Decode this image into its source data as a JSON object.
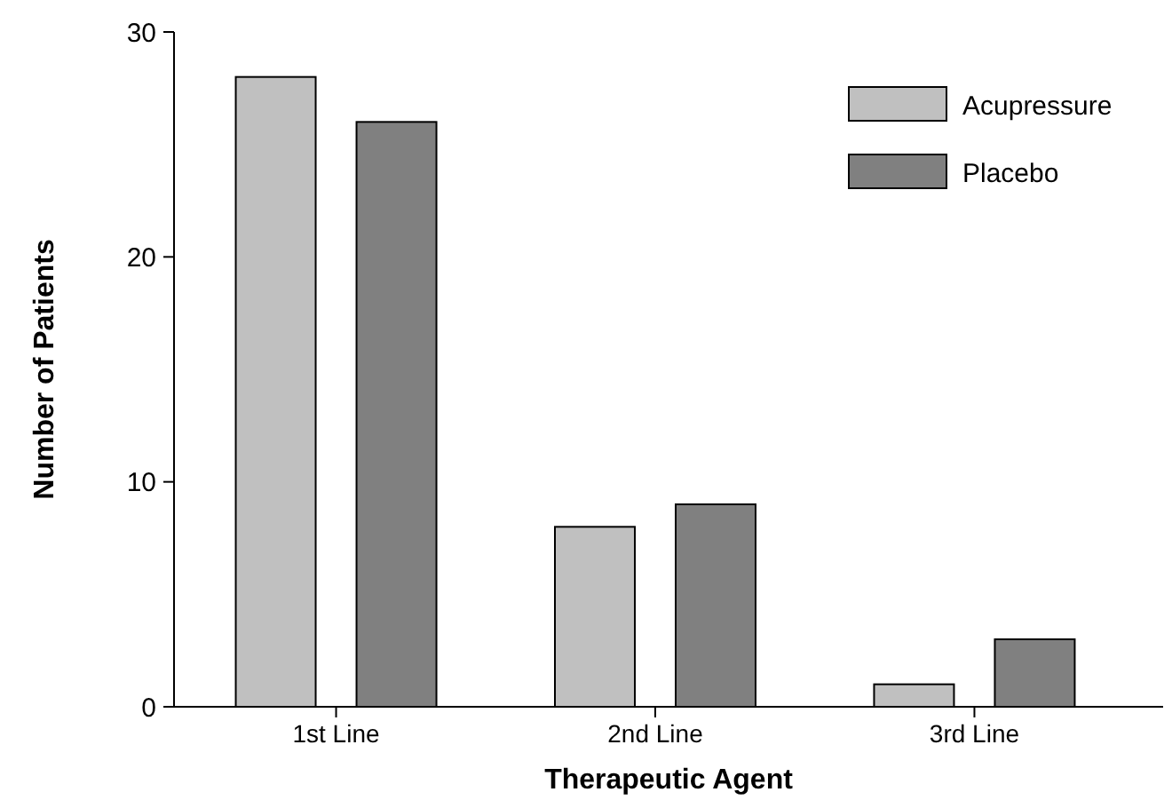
{
  "chart_data": {
    "type": "bar",
    "xlabel": "Therapeutic Agent",
    "ylabel": "Number of Patients",
    "categories": [
      "1st Line",
      "2nd Line",
      "3rd Line"
    ],
    "series": [
      {
        "name": "Acupressure",
        "color": "#c0c0c0",
        "values": [
          28,
          8,
          1
        ]
      },
      {
        "name": "Placebo",
        "color": "#808080",
        "values": [
          26,
          9,
          3
        ]
      }
    ],
    "ylim": [
      0,
      30
    ],
    "yticks": [
      0,
      10,
      20,
      30
    ],
    "grid": false,
    "legend": "top right"
  }
}
